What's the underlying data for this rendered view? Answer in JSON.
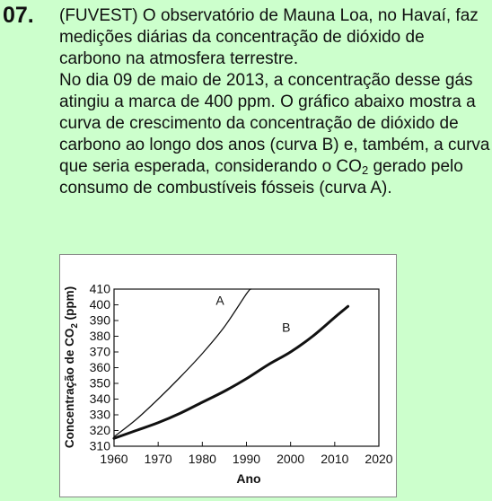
{
  "question": {
    "number": "07.",
    "paragraph1": "(FUVEST) O observatório de Mauna Loa, no Havaí, faz medições diárias da concentração de dióxido de carbono na atmosfera terrestre.",
    "paragraph2_before_sub": "No dia 09 de maio de 2013, a concentração desse gás atingiu a marca de 400 ppm. O gráfico abaixo mostra a curva de crescimento da concentração de dióxido de carbono ao longo dos anos (curva B) e, também, a curva que seria esperada, considerando o CO",
    "paragraph2_sub": "2",
    "paragraph2_after_sub": " gerado pelo consumo de combustíveis fósseis (curva A)."
  },
  "chart_data": {
    "type": "line",
    "xlabel": "Ano",
    "ylabel_main": "Concentração de CO",
    "ylabel_sub": "2",
    "ylabel_unit": " (ppm)",
    "xlim": [
      1960,
      2020
    ],
    "ylim": [
      310,
      410
    ],
    "x_ticks": [
      1960,
      1970,
      1980,
      1990,
      2000,
      2010,
      2020
    ],
    "y_ticks": [
      310,
      320,
      330,
      340,
      350,
      360,
      370,
      380,
      390,
      400,
      410
    ],
    "series": [
      {
        "name": "A",
        "x": [
          1960,
          1965,
          1970,
          1975,
          1980,
          1985,
          1990,
          1991
        ],
        "y": [
          316,
          327,
          340,
          354,
          369,
          386,
          407,
          410
        ],
        "label_at": [
          1984,
          400
        ]
      },
      {
        "name": "B",
        "x": [
          1960,
          1965,
          1970,
          1975,
          1980,
          1985,
          1990,
          1995,
          2000,
          2005,
          2010,
          2013
        ],
        "y": [
          315,
          320,
          325,
          331,
          338,
          345,
          353,
          362,
          370,
          380,
          392,
          399
        ],
        "label_at": [
          1999,
          383
        ]
      }
    ]
  }
}
